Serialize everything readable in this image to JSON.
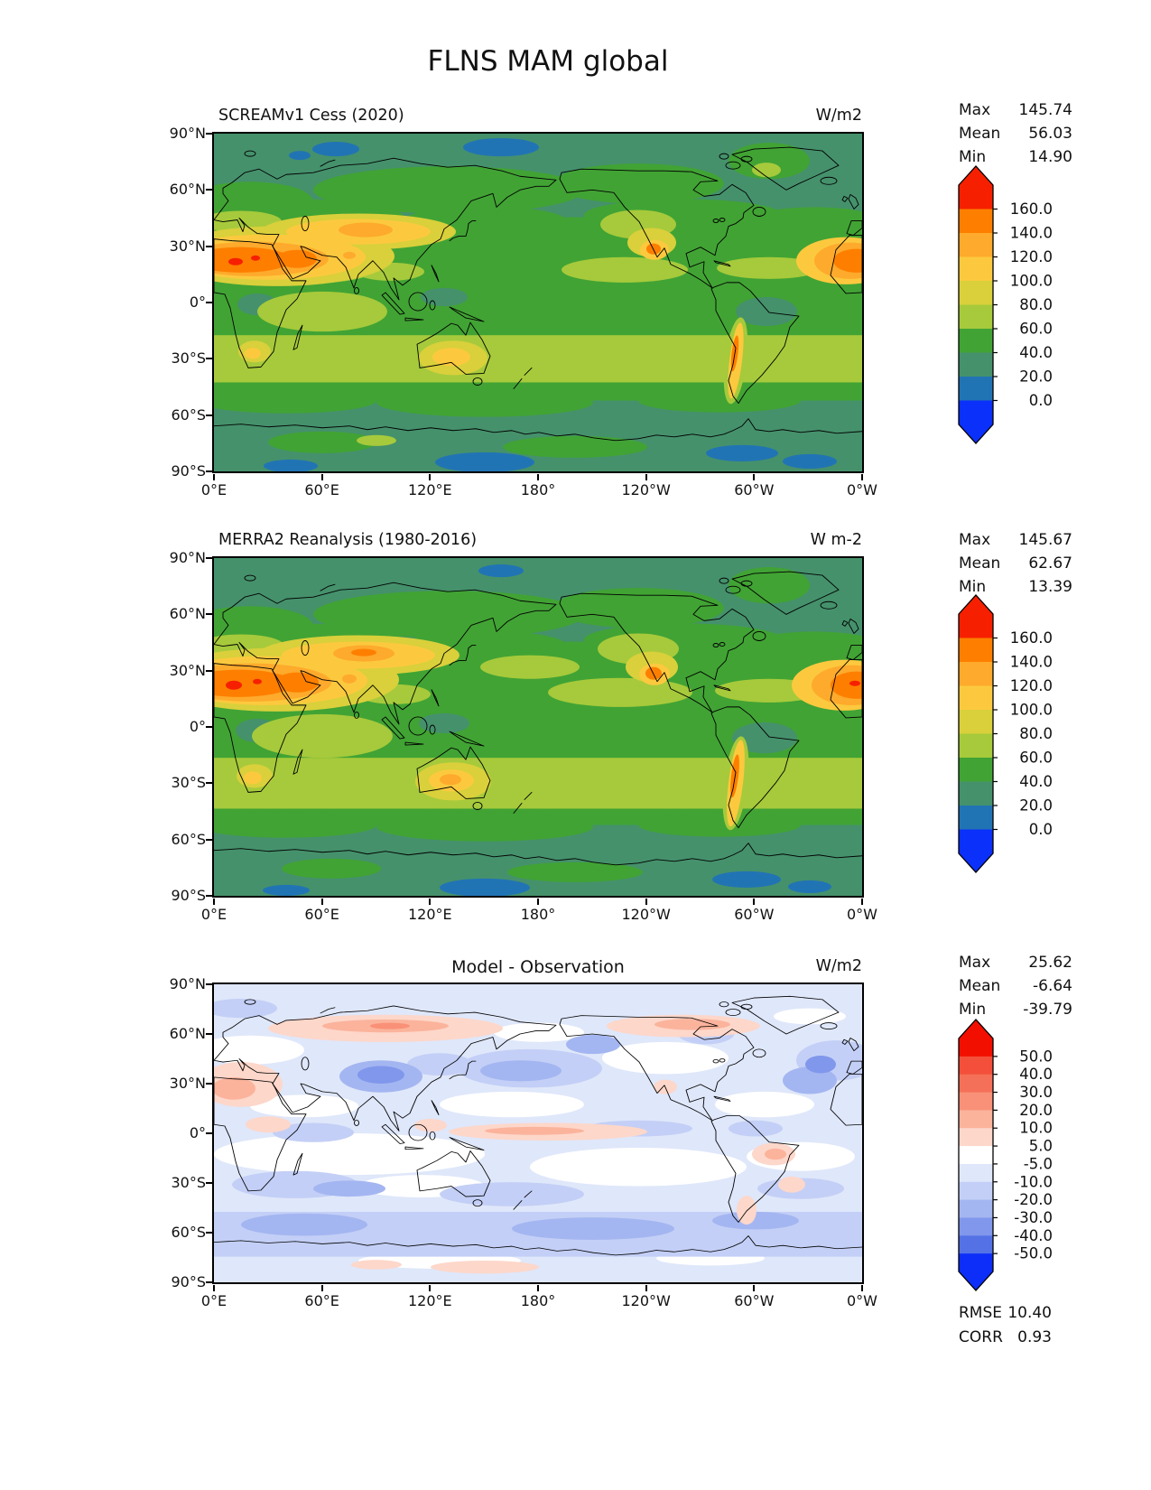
{
  "figure": {
    "title": "FLNS MAM global"
  },
  "axes": {
    "x_ticks": [
      "0°E",
      "60°E",
      "120°E",
      "180°",
      "120°W",
      "60°W",
      "0°W"
    ],
    "y_ticks": [
      "90°N",
      "60°N",
      "30°N",
      "0°",
      "30°S",
      "60°S",
      "90°S"
    ]
  },
  "panels": [
    {
      "title": "SCREAMv1 Cess (2020)",
      "units": "W/m2",
      "stats": [
        {
          "label": "Max",
          "value": "145.74"
        },
        {
          "label": "Mean",
          "value": "56.03"
        },
        {
          "label": "Min",
          "value": "14.90"
        }
      ],
      "colorbar_ticks": [
        "160.0",
        "140.0",
        "120.0",
        "100.0",
        "80.0",
        "60.0",
        "40.0",
        "20.0",
        "0.0"
      ]
    },
    {
      "title": "MERRA2 Reanalysis (1980-2016)",
      "units": "W m-2",
      "stats": [
        {
          "label": "Max",
          "value": "145.67"
        },
        {
          "label": "Mean",
          "value": "62.67"
        },
        {
          "label": "Min",
          "value": "13.39"
        }
      ],
      "colorbar_ticks": [
        "160.0",
        "140.0",
        "120.0",
        "100.0",
        "80.0",
        "60.0",
        "40.0",
        "20.0",
        "0.0"
      ]
    },
    {
      "title": "Model - Observation",
      "units": "W/m2",
      "stats": [
        {
          "label": "Max",
          "value": "25.62"
        },
        {
          "label": "Mean",
          "value": "-6.64"
        },
        {
          "label": "Min",
          "value": "-39.79"
        }
      ],
      "colorbar_ticks": [
        "50.0",
        "40.0",
        "30.0",
        "20.0",
        "10.0",
        "5.0",
        "-5.0",
        "-10.0",
        "-20.0",
        "-30.0",
        "-40.0",
        "-50.0"
      ],
      "metrics": [
        {
          "label": "RMSE",
          "value": "10.40"
        },
        {
          "label": "CORR",
          "value": "0.93"
        }
      ]
    }
  ],
  "chart_data": {
    "type": "heatmap",
    "figure_title": "FLNS MAM global",
    "variable": "FLNS",
    "season": "MAM",
    "region": "global",
    "projection": "equirectangular lat-lon, longitude 0°E to 0°W (Pacific-centered 180°)",
    "x_ticks": [
      "0°E",
      "60°E",
      "120°E",
      "180°",
      "120°W",
      "60°W",
      "0°W"
    ],
    "y_ticks": [
      "90°N",
      "60°N",
      "30°N",
      "0°",
      "30°S",
      "60°S",
      "90°S"
    ],
    "panels": [
      {
        "title": "SCREAMv1 Cess (2020)",
        "units": "W/m2",
        "stats": {
          "max": 145.74,
          "mean": 56.03,
          "min": 14.9
        },
        "colorbar_levels": [
          0,
          20,
          40,
          60,
          80,
          100,
          120,
          140,
          160
        ],
        "colorbar_extend": "both",
        "palette": [
          "#f62000",
          "#fe7f00",
          "#feaa2c",
          "#fcc93e",
          "#d9d03b",
          "#a6ca3b",
          "#41a334",
          "#45916c",
          "#2174b4",
          "#0b30fa"
        ]
      },
      {
        "title": "MERRA2 Reanalysis (1980-2016)",
        "units": "W m-2",
        "stats": {
          "max": 145.67,
          "mean": 62.67,
          "min": 13.39
        },
        "colorbar_levels": [
          0,
          20,
          40,
          60,
          80,
          100,
          120,
          140,
          160
        ],
        "colorbar_extend": "both",
        "palette": [
          "#f62000",
          "#fe7f00",
          "#feaa2c",
          "#fcc93e",
          "#d9d03b",
          "#a6ca3b",
          "#41a334",
          "#45916c",
          "#2174b4",
          "#0b30fa"
        ]
      },
      {
        "title": "Model - Observation",
        "units": "W/m2",
        "stats": {
          "max": 25.62,
          "mean": -6.64,
          "min": -39.79
        },
        "metrics": {
          "rmse": 10.4,
          "corr": 0.93
        },
        "colorbar_levels": [
          -50,
          -40,
          -30,
          -20,
          -10,
          -5,
          5,
          10,
          20,
          30,
          40,
          50
        ],
        "colorbar_extend": "both",
        "palette": [
          "#f30f00",
          "#f44f3a",
          "#f57058",
          "#f89177",
          "#fbb39c",
          "#fdd7ca",
          "#ffffff",
          "#dfe7fa",
          "#c3cff6",
          "#a4b6f1",
          "#8097ec",
          "#5472e5",
          "#0d2df8"
        ]
      }
    ]
  }
}
